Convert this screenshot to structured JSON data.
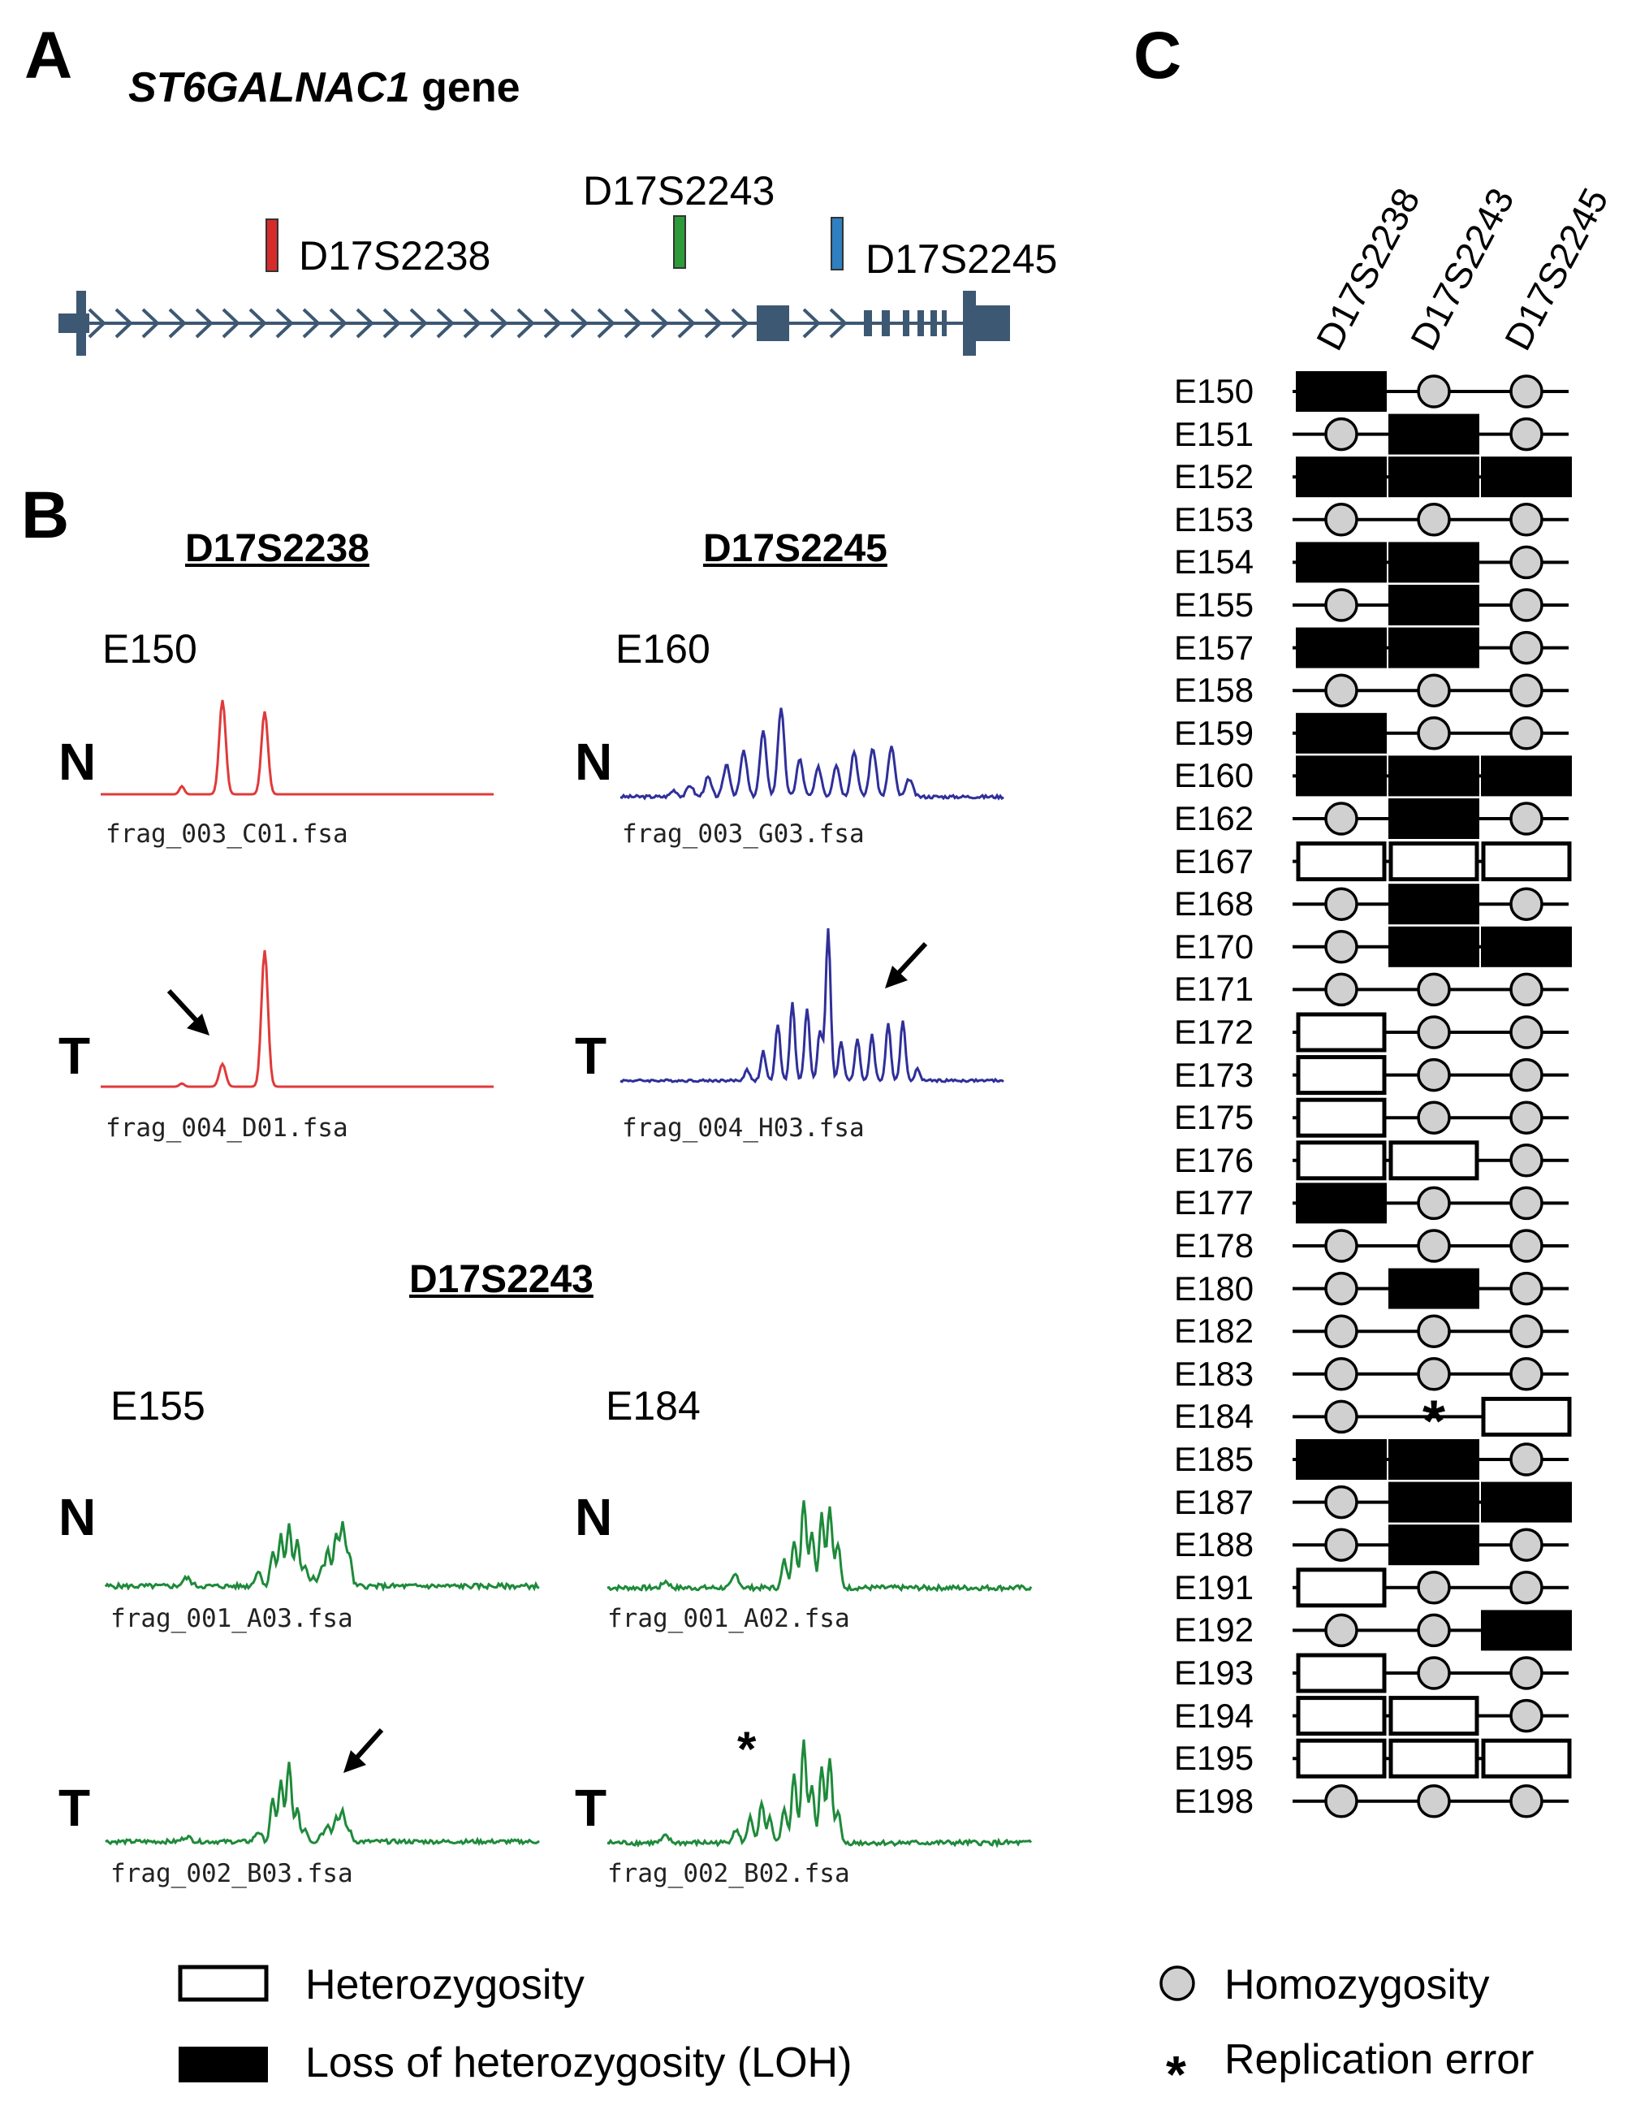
{
  "panel_a": {
    "letter": "A",
    "gene_name": "ST6GALNAC1",
    "gene_word": "gene",
    "markers": [
      {
        "name": "D17S2238",
        "color": "#d62b2b"
      },
      {
        "name": "D17S2243",
        "color": "#2e9b3a"
      },
      {
        "name": "D17S2245",
        "color": "#2f7fc1"
      }
    ],
    "gene_color": "#3d5873"
  },
  "panel_b": {
    "letter": "B",
    "sections": [
      {
        "title": "D17S2238",
        "color": "#e03a3a",
        "sample": "E150",
        "normal_file": "frag_003_C01.fsa",
        "tumor_file": "frag_004_D01.fsa"
      },
      {
        "title": "D17S2245",
        "color": "#2f2f9a",
        "sample": "E160",
        "normal_file": "frag_003_G03.fsa",
        "tumor_file": "frag_004_H03.fsa"
      },
      {
        "title": "D17S2243",
        "color": "#1e8a3a",
        "sample": "E155",
        "normal_file": "frag_001_A03.fsa",
        "tumor_file": "frag_002_B03.fsa"
      },
      {
        "title": "",
        "color": "#1e8a3a",
        "sample": "E184",
        "normal_file": "frag_001_A02.fsa",
        "tumor_file": "frag_002_B02.fsa"
      }
    ],
    "normal_label": "N",
    "tumor_label": "T",
    "replication_mark": "*"
  },
  "panel_c": {
    "letter": "C",
    "columns": [
      "D17S2238",
      "D17S2243",
      "D17S2245"
    ],
    "rows": [
      {
        "id": "E150",
        "s": [
          "L",
          "H",
          "H"
        ]
      },
      {
        "id": "E151",
        "s": [
          "H",
          "L",
          "H"
        ]
      },
      {
        "id": "E152",
        "s": [
          "L",
          "L",
          "L"
        ]
      },
      {
        "id": "E153",
        "s": [
          "H",
          "H",
          "H"
        ]
      },
      {
        "id": "E154",
        "s": [
          "L",
          "L",
          "H"
        ]
      },
      {
        "id": "E155",
        "s": [
          "H",
          "L",
          "H"
        ]
      },
      {
        "id": "E157",
        "s": [
          "L",
          "L",
          "H"
        ]
      },
      {
        "id": "E158",
        "s": [
          "H",
          "H",
          "H"
        ]
      },
      {
        "id": "E159",
        "s": [
          "L",
          "H",
          "H"
        ]
      },
      {
        "id": "E160",
        "s": [
          "L",
          "L",
          "L"
        ]
      },
      {
        "id": "E162",
        "s": [
          "H",
          "L",
          "H"
        ]
      },
      {
        "id": "E167",
        "s": [
          "Het",
          "Het",
          "Het"
        ]
      },
      {
        "id": "E168",
        "s": [
          "H",
          "L",
          "H"
        ]
      },
      {
        "id": "E170",
        "s": [
          "H",
          "L",
          "L"
        ]
      },
      {
        "id": "E171",
        "s": [
          "H",
          "H",
          "H"
        ]
      },
      {
        "id": "E172",
        "s": [
          "Het",
          "H",
          "H"
        ]
      },
      {
        "id": "E173",
        "s": [
          "Het",
          "H",
          "H"
        ]
      },
      {
        "id": "E175",
        "s": [
          "Het",
          "H",
          "H"
        ]
      },
      {
        "id": "E176",
        "s": [
          "Het",
          "Het",
          "H"
        ]
      },
      {
        "id": "E177",
        "s": [
          "L",
          "H",
          "H"
        ]
      },
      {
        "id": "E178",
        "s": [
          "H",
          "H",
          "H"
        ]
      },
      {
        "id": "E180",
        "s": [
          "H",
          "L",
          "H"
        ]
      },
      {
        "id": "E182",
        "s": [
          "H",
          "H",
          "H"
        ]
      },
      {
        "id": "E183",
        "s": [
          "H",
          "H",
          "H"
        ]
      },
      {
        "id": "E184",
        "s": [
          "H",
          "R",
          "Het"
        ]
      },
      {
        "id": "E185",
        "s": [
          "L",
          "L",
          "H"
        ]
      },
      {
        "id": "E187",
        "s": [
          "H",
          "L",
          "L"
        ]
      },
      {
        "id": "E188",
        "s": [
          "H",
          "L",
          "H"
        ]
      },
      {
        "id": "E191",
        "s": [
          "Het",
          "H",
          "H"
        ]
      },
      {
        "id": "E192",
        "s": [
          "H",
          "H",
          "L"
        ]
      },
      {
        "id": "E193",
        "s": [
          "Het",
          "H",
          "H"
        ]
      },
      {
        "id": "E194",
        "s": [
          "Het",
          "Het",
          "H"
        ]
      },
      {
        "id": "E195",
        "s": [
          "Het",
          "Het",
          "Het"
        ]
      },
      {
        "id": "E198",
        "s": [
          "H",
          "H",
          "H"
        ]
      }
    ]
  },
  "legend": {
    "heterozygosity": "Heterozygosity",
    "loh": "Loss of heterozygosity (LOH)",
    "homozygosity": "Homozygosity",
    "replication_error": "Replication error",
    "asterisk": "*"
  },
  "colors": {
    "homozygosity_fill": "#d0d0d0",
    "loh_fill": "#000000",
    "het_fill": "#ffffff"
  }
}
